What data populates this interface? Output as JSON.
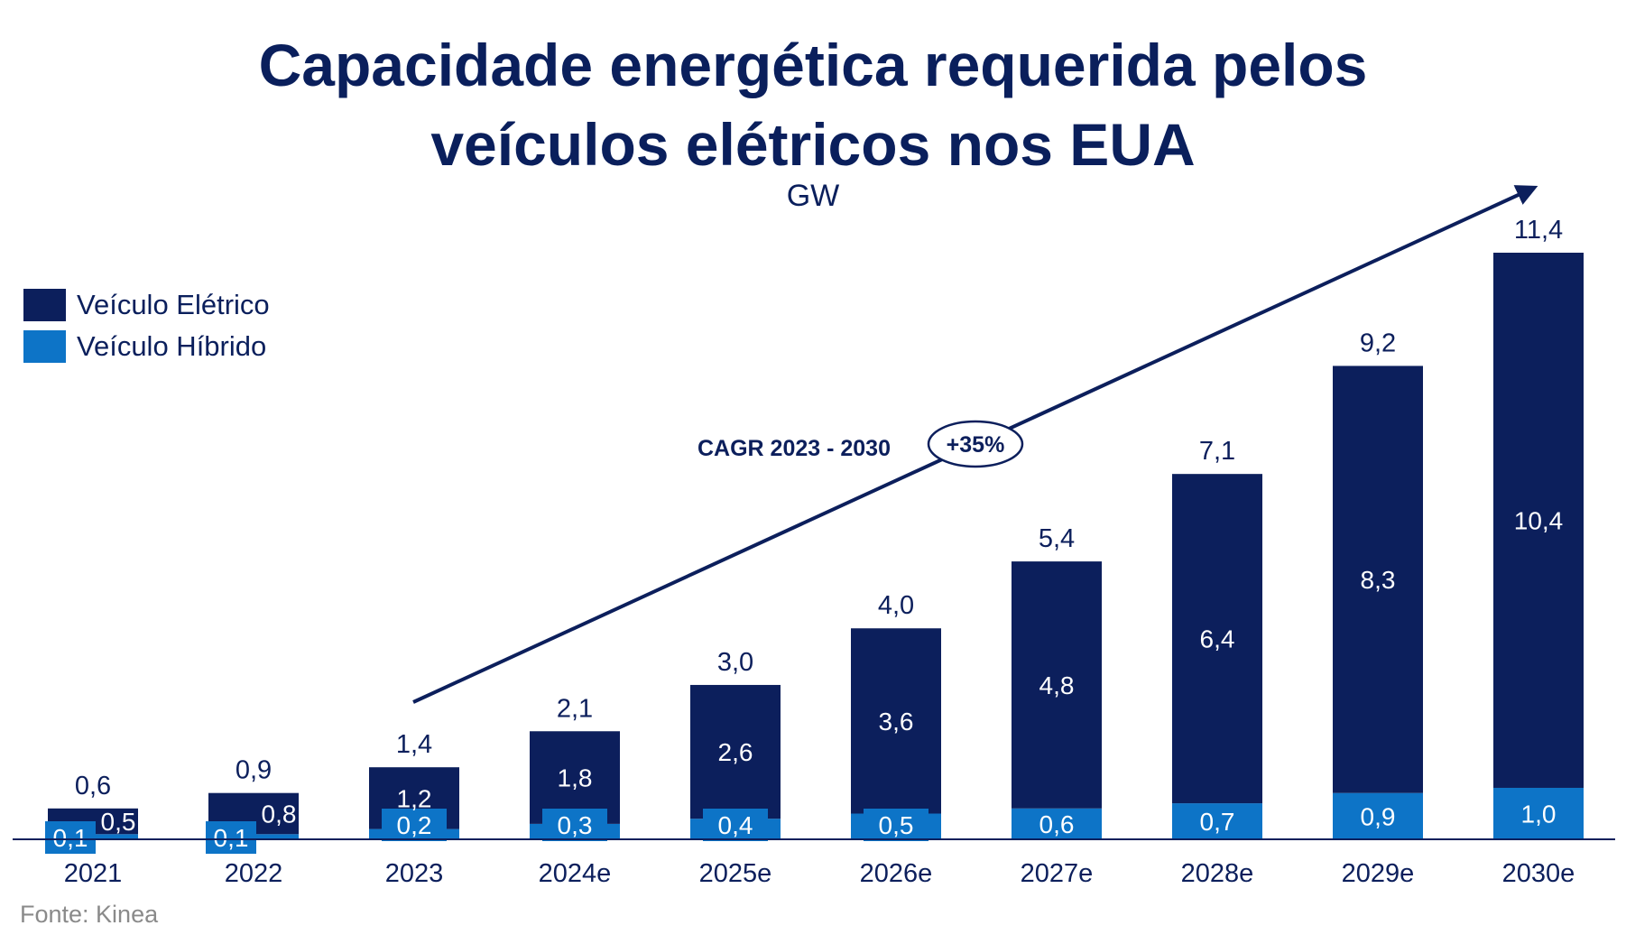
{
  "chart_data": {
    "type": "bar",
    "stacked": true,
    "title_lines": [
      "Capacidade energética requerida pelos",
      "veículos elétricos nos EUA"
    ],
    "unit": "GW",
    "categories": [
      "2021",
      "2022",
      "2023",
      "2024e",
      "2025e",
      "2026e",
      "2027e",
      "2028e",
      "2029e",
      "2030e"
    ],
    "series": [
      {
        "name": "Veículo Híbrido",
        "color": "#0d74c7",
        "values": [
          0.1,
          0.1,
          0.2,
          0.3,
          0.4,
          0.5,
          0.6,
          0.7,
          0.9,
          1.0
        ],
        "labels": [
          "0,1",
          "0,1",
          "0,2",
          "0,3",
          "0,4",
          "0,5",
          "0,6",
          "0,7",
          "0,9",
          "1,0"
        ]
      },
      {
        "name": "Veículo Elétrico",
        "color": "#0c1f5c",
        "values": [
          0.5,
          0.8,
          1.2,
          1.8,
          2.6,
          3.6,
          4.8,
          6.4,
          8.3,
          10.4
        ],
        "labels": [
          "0,5",
          "0,8",
          "1,2",
          "1,8",
          "2,6",
          "3,6",
          "4,8",
          "6,4",
          "8,3",
          "10,4"
        ]
      }
    ],
    "totals": [
      0.6,
      0.9,
      1.4,
      2.1,
      3.0,
      4.0,
      5.4,
      7.1,
      9.2,
      11.4
    ],
    "total_labels": [
      "0,6",
      "0,9",
      "1,4",
      "2,1",
      "3,0",
      "4,0",
      "5,4",
      "7,1",
      "9,2",
      "11,4"
    ],
    "ylim": [
      0,
      11.4
    ],
    "grid": false,
    "legend_position": "top-left",
    "annotation": {
      "label": "CAGR 2023 - 2030",
      "value": "+35%"
    }
  },
  "source": "Fonte: Kinea"
}
